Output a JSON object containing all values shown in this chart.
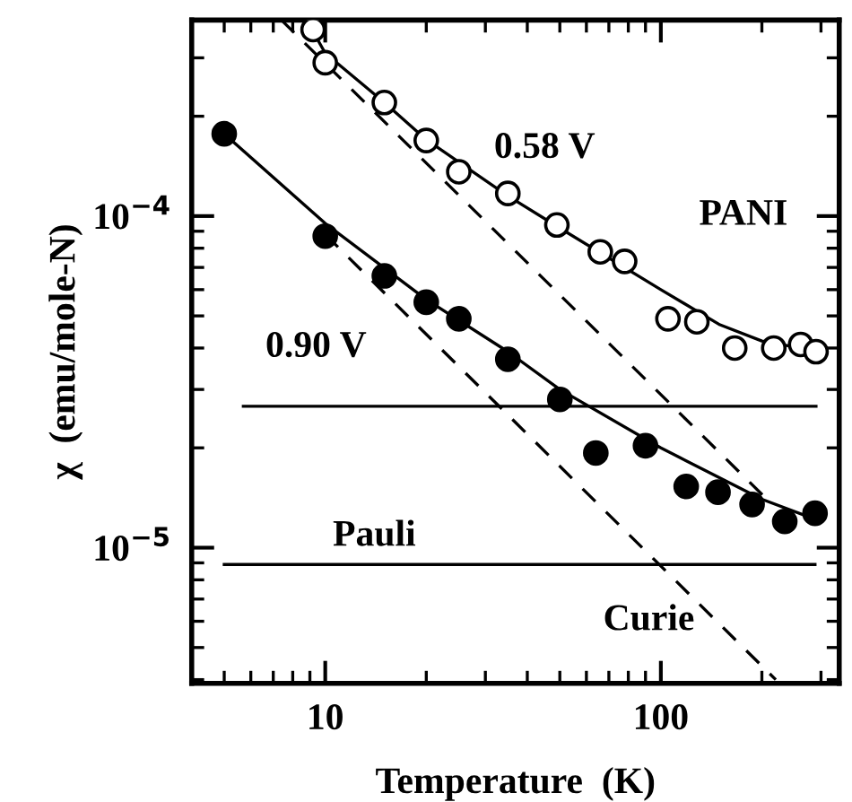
{
  "chart_data": {
    "type": "scatter",
    "xlabel": "Temperature  (K)",
    "ylabel": "χ  (emu/mole-N)",
    "log": "xy",
    "xlim": [
      4,
      340
    ],
    "ylim": [
      3.9e-06,
      0.00039
    ],
    "xticks": [
      10,
      100,
      {
        "value": 5,
        "label": null
      },
      {
        "value": 6,
        "label": null
      },
      {
        "value": 7,
        "label": null
      },
      {
        "value": 8,
        "label": null
      },
      {
        "value": 9,
        "label": null
      },
      {
        "value": 20,
        "label": null
      },
      {
        "value": 30,
        "label": null
      },
      {
        "value": 40,
        "label": null
      },
      {
        "value": 50,
        "label": null
      },
      {
        "value": 60,
        "label": null
      },
      {
        "value": 70,
        "label": null
      },
      {
        "value": 80,
        "label": null
      },
      {
        "value": 90,
        "label": null
      },
      {
        "value": 200,
        "label": null
      },
      {
        "value": 300,
        "label": null
      }
    ],
    "yticks": [
      {
        "value": 1e-05,
        "label": "10$^{−5}$"
      },
      {
        "value": 0.0001,
        "label": "10$^{−4}$"
      },
      {
        "value": 4e-06,
        "label": null
      },
      {
        "value": 5e-06,
        "label": null
      },
      {
        "value": 6e-06,
        "label": null
      },
      {
        "value": 7e-06,
        "label": null
      },
      {
        "value": 8e-06,
        "label": null
      },
      {
        "value": 9e-06,
        "label": null
      },
      {
        "value": 2e-05,
        "label": null
      },
      {
        "value": 3e-05,
        "label": null
      },
      {
        "value": 4e-05,
        "label": null
      },
      {
        "value": 5e-05,
        "label": null
      },
      {
        "value": 6e-05,
        "label": null
      },
      {
        "value": 7e-05,
        "label": null
      },
      {
        "value": 8e-05,
        "label": null
      },
      {
        "value": 9e-05,
        "label": null
      },
      {
        "value": 0.0002,
        "label": null
      },
      {
        "value": 0.0003,
        "label": null
      }
    ],
    "grid": false,
    "legend": false,
    "series": [
      {
        "marker": "circle",
        "color": "#ffffff",
        "x": [
          9.2,
          10,
          15,
          20,
          25,
          35,
          49,
          66,
          78,
          105,
          128,
          166,
          217,
          261,
          290
        ],
        "values": [
          0.000365,
          0.00029,
          0.00022,
          0.000169,
          0.000136,
          0.000117,
          9.4e-05,
          7.8e-05,
          7.3e-05,
          4.9e-05,
          4.8e-05,
          4e-05,
          4e-05,
          4.1e-05,
          3.9e-05
        ]
      },
      {
        "marker": "circle",
        "color": "#000000",
        "x": [
          5,
          10,
          15,
          20,
          25,
          35,
          50,
          64,
          90,
          119,
          148,
          187,
          234,
          288
        ],
        "values": [
          0.000177,
          8.7e-05,
          6.6e-05,
          5.5e-05,
          4.9e-05,
          3.7e-05,
          2.8e-05,
          1.93e-05,
          2.03e-05,
          1.53e-05,
          1.47e-05,
          1.35e-05,
          1.2e-05,
          1.27e-05
        ]
      },
      {
        "type": "line",
        "line_style": "solid",
        "color": "#000000",
        "x": [
          8.8,
          10,
          15,
          20,
          35,
          50,
          100,
          150,
          200,
          300
        ],
        "values": [
          0.00039,
          0.00031,
          0.00022,
          0.00017,
          0.000115,
          9.2e-05,
          6e-05,
          4.7e-05,
          4.2e-05,
          3.9e-05
        ]
      },
      {
        "type": "line",
        "line_style": "solid",
        "color": "#000000",
        "x": [
          5,
          10,
          20,
          35,
          50,
          100,
          200,
          300
        ],
        "values": [
          0.000177,
          9.5e-05,
          5.6e-05,
          3.9e-05,
          3e-05,
          2e-05,
          1.4e-05,
          1.2e-05
        ]
      },
      {
        "type": "line",
        "line_style": "dashed",
        "color": "#000000",
        "x": [
          7.4,
          210
        ],
        "values": [
          0.00039,
          1.38e-05
        ]
      },
      {
        "type": "line",
        "line_style": "dashed",
        "color": "#000000",
        "x": [
          10,
          220
        ],
        "values": [
          8.8e-05,
          4e-06
        ]
      },
      {
        "type": "line",
        "line_style": "solid",
        "color": "#000000",
        "x": [
          5.7,
          290
        ],
        "values": [
          2.67e-05,
          2.67e-05
        ]
      },
      {
        "type": "line",
        "line_style": "solid",
        "color": "#000000",
        "x": [
          5,
          288
        ],
        "values": [
          8.9e-06,
          8.9e-06
        ]
      }
    ],
    "annotations": [
      "0.58 V",
      "PANI",
      "0.90 V",
      "Pauli",
      "Curie"
    ]
  }
}
